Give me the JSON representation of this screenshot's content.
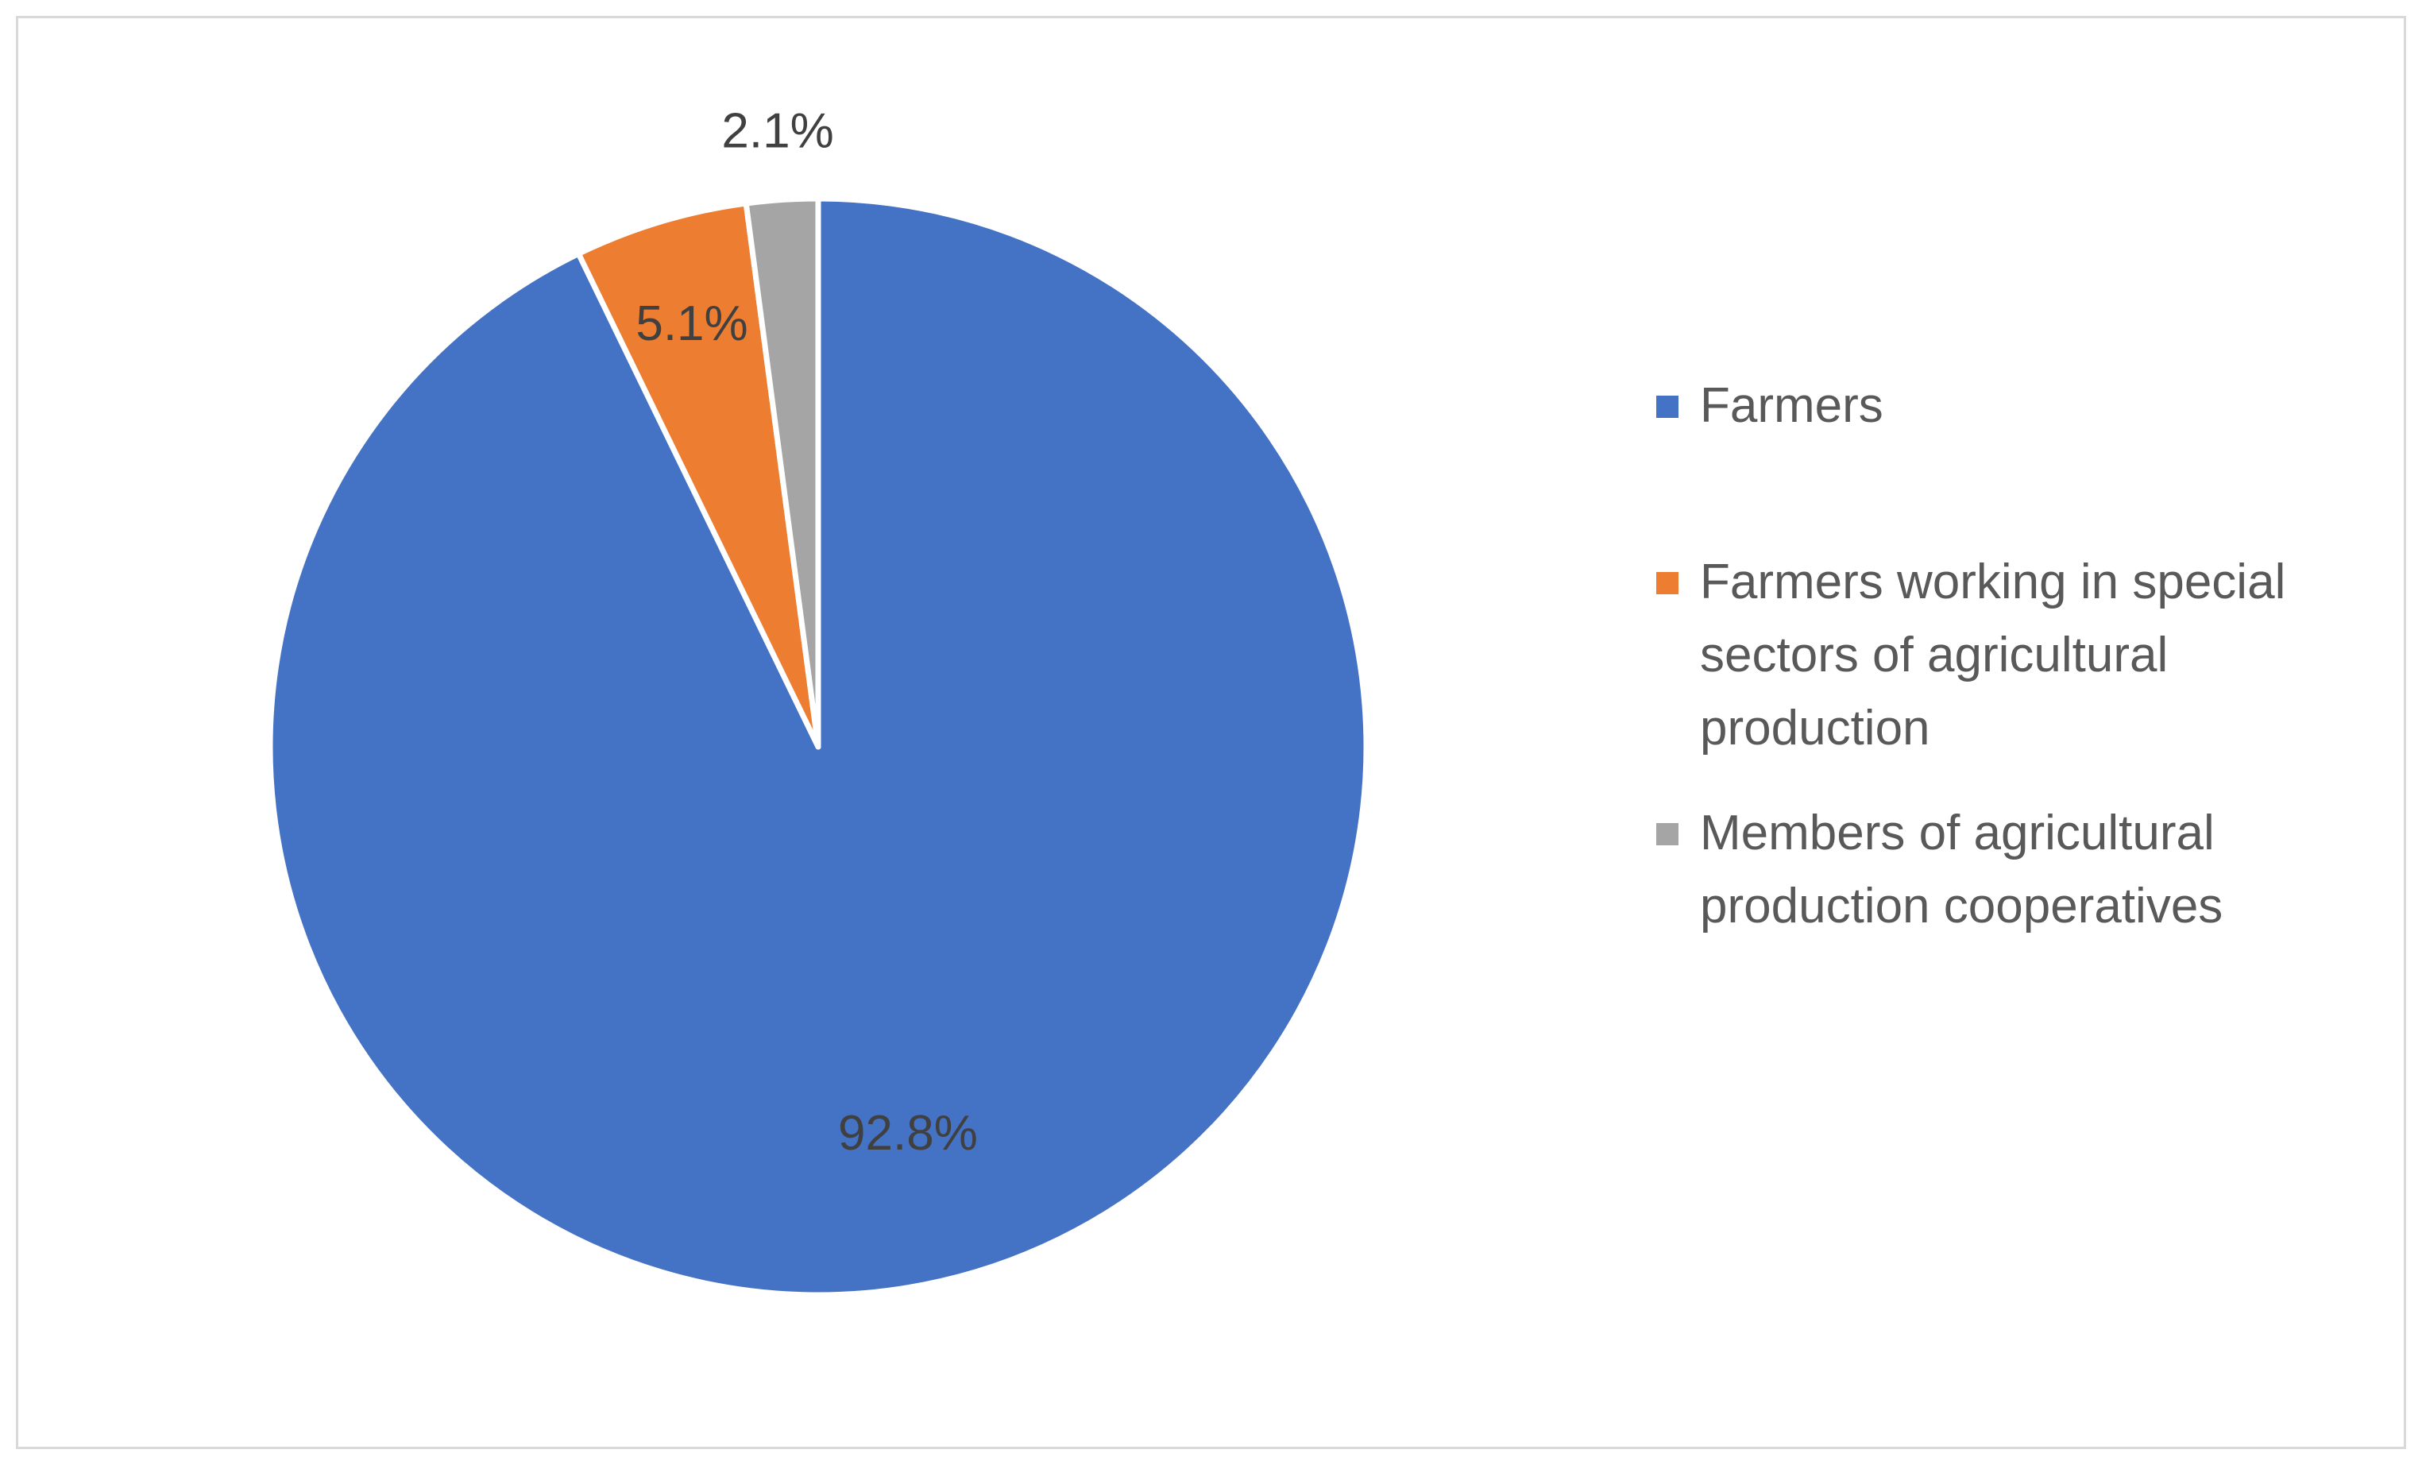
{
  "chart_data": {
    "type": "pie",
    "title": "",
    "legend_position": "right",
    "start_angle_deg": 0,
    "direction": "clockwise",
    "slices": [
      {
        "label": "Farmers",
        "value": 92.8,
        "display": "92.8%",
        "color": "#4472C4"
      },
      {
        "label": "Farmers working in special sectors of agricultural production",
        "value": 5.1,
        "display": "5.1%",
        "color": "#ED7D31"
      },
      {
        "label": "Members of agricultural production cooperatives",
        "value": 2.1,
        "display": "2.1%",
        "color": "#A5A5A5"
      }
    ]
  }
}
